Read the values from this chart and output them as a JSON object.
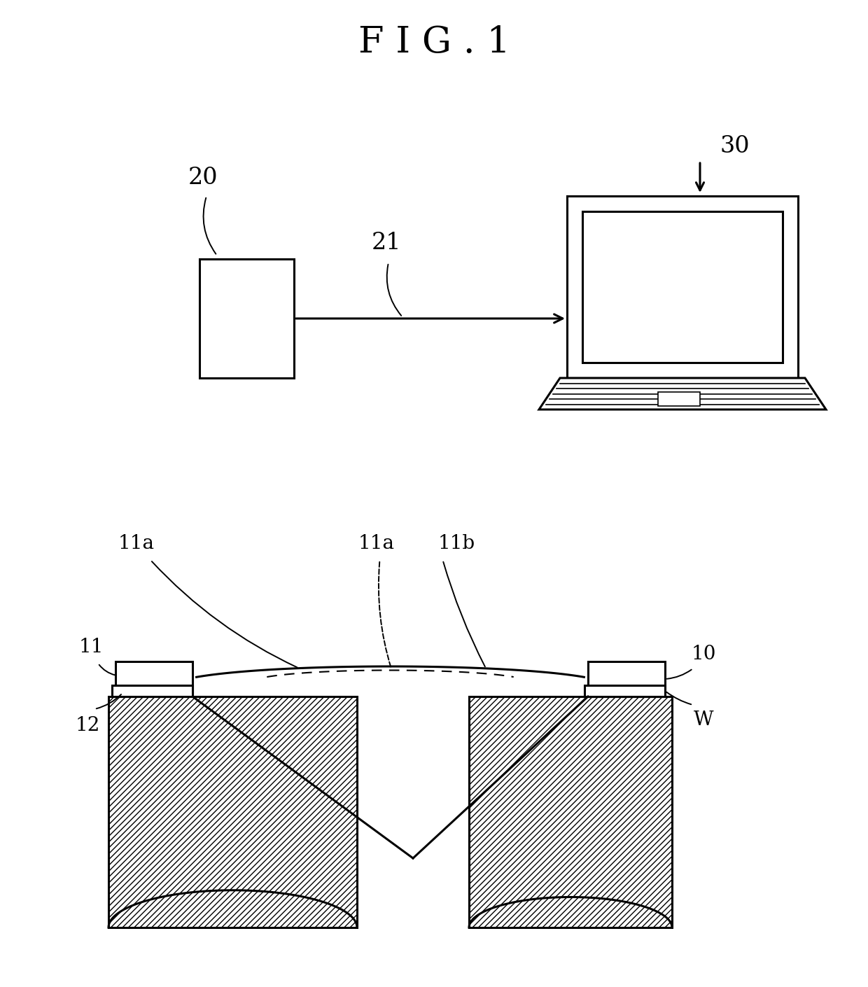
{
  "title": "F I G . 1",
  "title_fontsize": 38,
  "bg_color": "#ffffff",
  "line_color": "#000000",
  "label_20": "20",
  "label_21": "21",
  "label_30": "30",
  "label_10": "10",
  "label_11": "11",
  "label_11a_left": "11a",
  "label_11a_center": "11a",
  "label_11b": "11b",
  "label_12": "12",
  "label_W": "W"
}
